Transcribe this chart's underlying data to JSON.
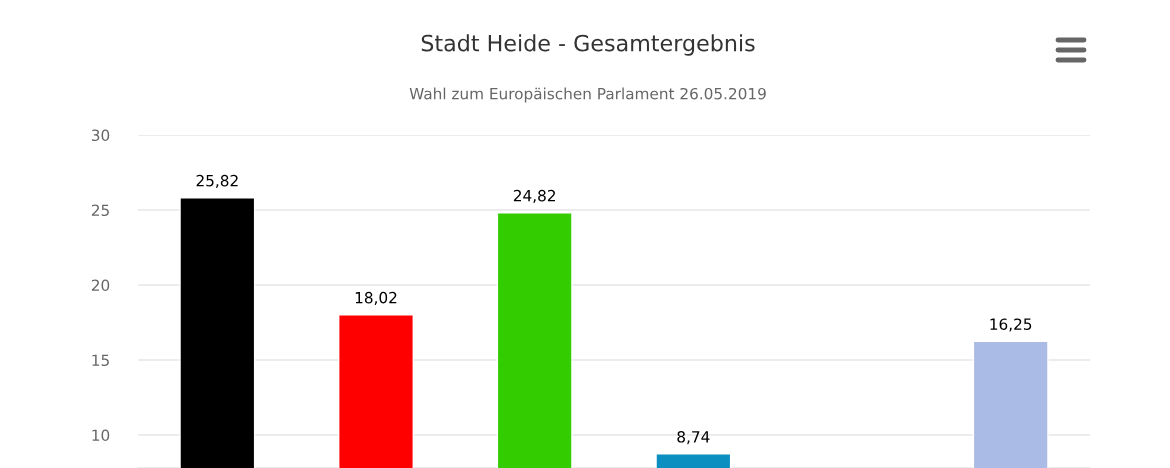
{
  "chart_data": {
    "type": "bar",
    "title": "Stadt Heide - Gesamtergebnis",
    "subtitle": "Wahl zum Europäischen Parlament 26.05.2019",
    "categories": [
      null,
      null,
      null,
      null,
      null,
      null
    ],
    "values": [
      25.82,
      18.02,
      24.82,
      8.74,
      null,
      16.25
    ],
    "colors": [
      "#000000",
      "#ff0000",
      "#33cc00",
      "#0a8fc0",
      null,
      "#aabce6"
    ],
    "value_labels": [
      "25,82",
      "18,02",
      "24,82",
      "8,74",
      null,
      "16,25"
    ],
    "ylim": [
      7.8,
      30
    ],
    "yticks": [
      10,
      15,
      20,
      25,
      30
    ],
    "grid": "y",
    "legend": false
  }
}
